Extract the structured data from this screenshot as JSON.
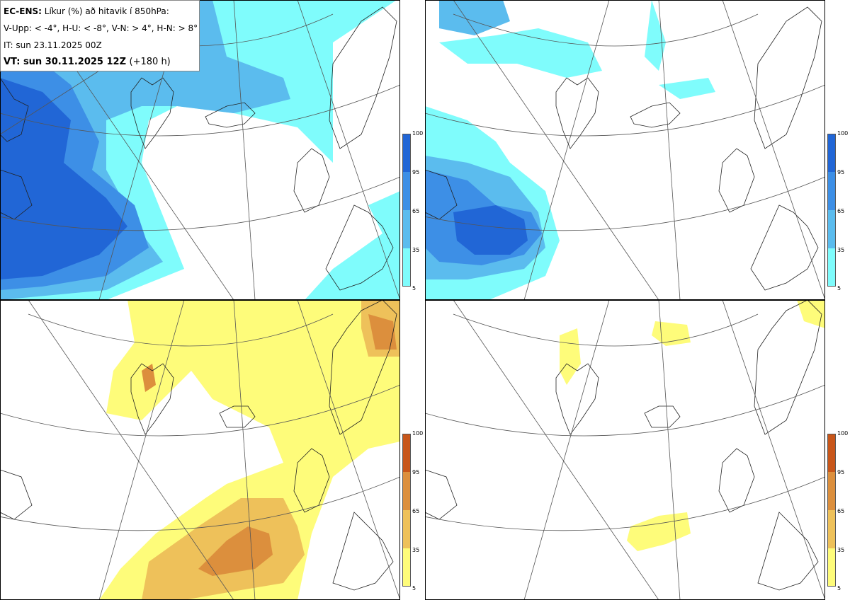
{
  "title": {
    "model": "EC-ENS:",
    "description": "Líkur (%) að hitavik í 850hPa:",
    "thresholds": "V-Upp: < -4°, H-U: < -8°, V-N: > 4°, H-N: > 8°",
    "issue_time": "IT: sun 23.11.2025 00Z",
    "valid_time": "VT: sun 30.11.2025 12Z",
    "lead": "(+180 h)"
  },
  "panels": [
    {
      "id": "V-Upp",
      "palette": "cold"
    },
    {
      "id": "H-U",
      "palette": "cold"
    },
    {
      "id": "V-N",
      "palette": "warm"
    },
    {
      "id": "H-N",
      "palette": "warm"
    }
  ],
  "colorbar": {
    "ticks": [
      "100",
      "95",
      "65",
      "35",
      "5"
    ],
    "cold_colors": [
      "#2166d6",
      "#3d8fe6",
      "#5bbcee",
      "#7ffcfc"
    ],
    "warm_colors": [
      "#c8561a",
      "#dc8f3d",
      "#eec15a",
      "#fefc7a"
    ]
  }
}
